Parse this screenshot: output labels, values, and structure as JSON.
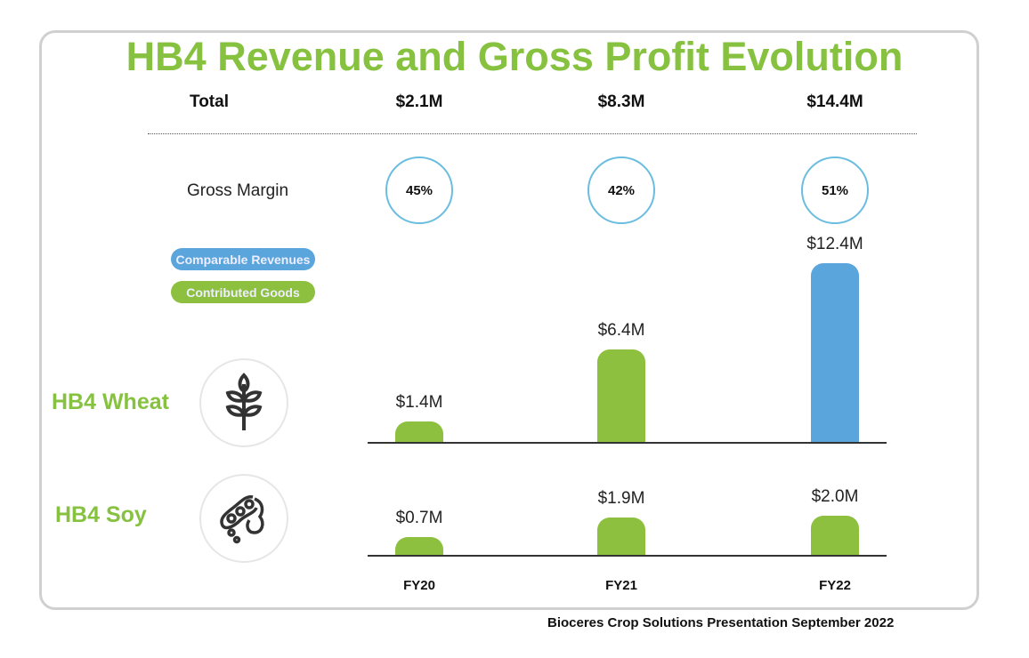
{
  "colors": {
    "title": "#86c23f",
    "contributed": "#8dc03f",
    "comparable": "#5aa5dc"
  },
  "chart_data": {
    "type": "bar",
    "title": "HB4 Revenue and Gross Profit Evolution",
    "categories": [
      "FY20",
      "FY21",
      "FY22"
    ],
    "totals_label": "Total",
    "totals": [
      "$2.1M",
      "$8.3M",
      "$14.4M"
    ],
    "gross_margin_label": "Gross Margin",
    "gross_margin": [
      "45%",
      "42%",
      "51%"
    ],
    "legend": [
      "Comparable Revenues",
      "Contributed Goods"
    ],
    "series": [
      {
        "name": "HB4 Wheat",
        "values": [
          1.4,
          6.4,
          12.4
        ],
        "labels": [
          "$1.4M",
          "$6.4M",
          "$12.4M"
        ],
        "types": [
          "Contributed Goods",
          "Contributed Goods",
          "Comparable Revenues"
        ]
      },
      {
        "name": "HB4 Soy",
        "values": [
          0.7,
          1.9,
          2.0
        ],
        "labels": [
          "$0.7M",
          "$1.9M",
          "$2.0M"
        ],
        "types": [
          "Contributed Goods",
          "Contributed Goods",
          "Contributed Goods"
        ]
      }
    ],
    "ylabel": "",
    "xlabel": "",
    "grid": false
  },
  "footer": "Bioceres Crop Solutions Presentation September 2022"
}
